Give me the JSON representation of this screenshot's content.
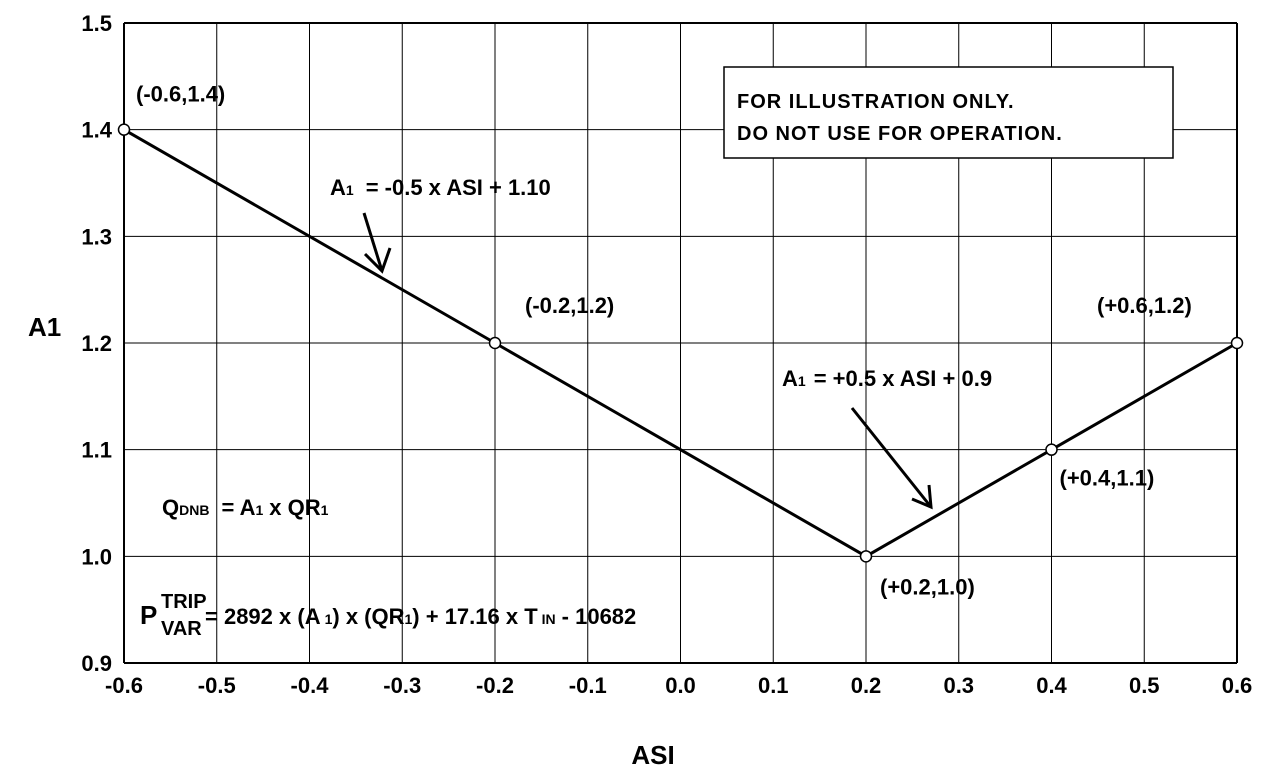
{
  "chart_data": {
    "type": "line",
    "xlabel": "ASI",
    "ylabel": "A1",
    "xlim": [
      -0.6,
      0.6
    ],
    "ylim": [
      0.9,
      1.5
    ],
    "x_ticks": [
      "-0.6",
      "-0.5",
      "-0.4",
      "-0.3",
      "-0.2",
      "-0.1",
      "0.0",
      "0.1",
      "0.2",
      "0.3",
      "0.4",
      "0.5",
      "0.6"
    ],
    "y_ticks": [
      "0.9",
      "1.0",
      "1.1",
      "1.2",
      "1.3",
      "1.4",
      "1.5"
    ],
    "grid": true,
    "series": [
      {
        "points": [
          {
            "x": -0.6,
            "y": 1.4,
            "label": "(-0.6,1.4)"
          },
          {
            "x": -0.2,
            "y": 1.2,
            "label": "(-0.2,1.2)"
          },
          {
            "x": 0.2,
            "y": 1.0,
            "label": "(+0.2,1.0)"
          },
          {
            "x": 0.4,
            "y": 1.1,
            "label": "(+0.4,1.1)"
          },
          {
            "x": 0.6,
            "y": 1.2,
            "label": "(+0.6,1.2)"
          }
        ]
      }
    ],
    "annotations": {
      "note_line1": "FOR ILLUSTRATION ONLY.",
      "note_line2": "DO NOT USE FOR OPERATION.",
      "eq_left_lhs": "A",
      "eq_left_sub": "1",
      "eq_left_rhs": "= -0.5 x ASI + 1.10",
      "eq_right_lhs": "A",
      "eq_right_sub": "1",
      "eq_right_rhs": "= +0.5 x ASI + 0.9",
      "qdnb_q": "Q",
      "qdnb_sub": "DNB",
      "qdnb_eq": "= A",
      "qdnb_a_sub": "1",
      "qdnb_x": "x QR",
      "qdnb_qr_sub": "1",
      "ptrip_p": "P",
      "ptrip_sup": "TRIP",
      "ptrip_sub": "VAR",
      "ptrip_eq1": "= 2892 x (A",
      "ptrip_s1": "1",
      "ptrip_eq2": ") x (QR",
      "ptrip_s2": "1",
      "ptrip_eq3": ") + 17.16 x T",
      "ptrip_s3": "IN",
      "ptrip_eq4": "- 10682"
    }
  }
}
